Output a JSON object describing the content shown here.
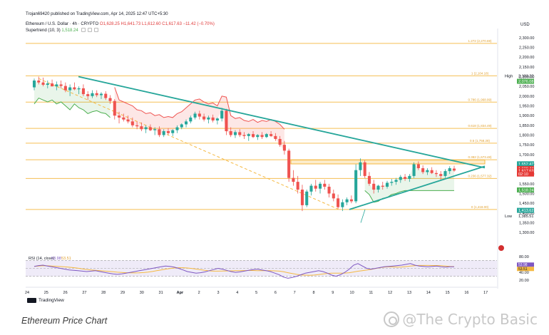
{
  "header": {
    "publisher": "Trojan69420 published on TradingView.com, Apr 14, 2025 12:47 UTC+5:30",
    "symbol": "Ethereum / U.S. Dollar · 4h · CRYPTO",
    "ohlc": "O1,628.25 H1,641.73 L1,612.60 C1,617.63 −11.42 (−0.70%)",
    "indicator_label": "Supertrend (10, 3)",
    "indicator_value": "1,518.24",
    "currency": "USD"
  },
  "footer": {
    "caption": "Ethereum Price Chart",
    "watermark": "@The Crypto Basic",
    "tv_logo": "TradingView"
  },
  "colors": {
    "up": "#26a69a",
    "down": "#ef5350",
    "trendline": "#26a69a",
    "fib": "#f5b942",
    "supertrend_up": "#4caf50",
    "supertrend_down": "#ef5350",
    "rsi": "#7e57c2",
    "rsi_ma": "#f5b942",
    "last_price": "#e53935"
  },
  "chart_data": {
    "type": "candlestick",
    "title": "Ethereum / U.S. Dollar · 4h · CRYPTO",
    "ylim": [
      1275,
      2325
    ],
    "y_ticks": [
      1300,
      1350,
      1400,
      1450,
      1500,
      1550,
      1600,
      1650,
      1700,
      1750,
      1800,
      1850,
      1900,
      1950,
      2000,
      2050,
      2100,
      2150,
      2200,
      2250,
      2300
    ],
    "x_ticks": [
      "24",
      "25",
      "26",
      "27",
      "28",
      "29",
      "30",
      "31",
      "Apr",
      "2",
      "3",
      "4",
      "5",
      "6",
      "7",
      "8",
      "9",
      "10",
      "11",
      "12",
      "13",
      "14",
      "15",
      "16",
      "17"
    ],
    "fib_levels": [
      {
        "ratio": "1.272",
        "price": 2270.69,
        "label": "1.272 (2,270.69)"
      },
      {
        "ratio": "1",
        "price": 2104.18,
        "label": "1 (2,104.18)"
      },
      {
        "ratio": "0.786",
        "price": 1968.99,
        "label": "0.786 (1,968.99)"
      },
      {
        "ratio": "0.618",
        "price": 1834.49,
        "label": "0.618 (1,834.49)"
      },
      {
        "ratio": "0.5",
        "price": 1758.28,
        "label": "0.5 (1,758.28)"
      },
      {
        "ratio": "0.382",
        "price": 1673.48,
        "label": "0.382 (1,673.48)"
      },
      {
        "ratio": "0.236",
        "price": 1577.32,
        "label": "0.236 (1,577.32)"
      },
      {
        "ratio": "0",
        "price": 1418.0,
        "label": "0 (1,418.00)"
      }
    ],
    "price_labels": [
      {
        "text": "High",
        "value": "2,103.22",
        "price": 2103.22,
        "style": "plain"
      },
      {
        "text": "",
        "value": "2,076.08",
        "price": 2076.08,
        "style": "green"
      },
      {
        "text": "",
        "value": "1,652.47",
        "price": 1652.47,
        "style": "teal"
      },
      {
        "text": "",
        "value": "1,634.09",
        "price": 1634.09,
        "style": "teal"
      },
      {
        "text": "",
        "value": "1,628.44",
        "price": 1628.44,
        "style": "red"
      },
      {
        "text": "",
        "value": "1,617.63",
        "price": 1617.63,
        "style": "red"
      },
      {
        "text": "",
        "value": "02:10",
        "price": 1600,
        "style": "red"
      },
      {
        "text": "",
        "value": "1,518.24",
        "price": 1518.24,
        "style": "green"
      },
      {
        "text": "",
        "value": "1,413.62",
        "price": 1413.62,
        "style": "teal"
      },
      {
        "text": "Low",
        "value": "1,385.51",
        "price": 1385.51,
        "style": "plain"
      }
    ],
    "trendline_down": {
      "from": {
        "x": "Mar 25",
        "y": 2100
      },
      "to": {
        "x": "Apr 16",
        "y": 1632
      }
    },
    "trendline_up": {
      "from": {
        "x": "Apr 9",
        "y": 1418
      },
      "to": {
        "x": "Apr 16",
        "y": 1640
      }
    },
    "resistance_zone": {
      "from": "Apr 5",
      "to": "Apr 16",
      "price_low": 1652,
      "price_high": 1672
    },
    "candles_ohlc": [
      [
        2045,
        2090,
        2030,
        2080
      ],
      [
        2080,
        2100,
        2060,
        2070
      ],
      [
        2070,
        2095,
        2050,
        2058
      ],
      [
        2058,
        2080,
        2040,
        2065
      ],
      [
        2065,
        2085,
        2050,
        2050
      ],
      [
        2050,
        2075,
        2030,
        2060
      ],
      [
        2060,
        2080,
        2040,
        2052
      ],
      [
        2052,
        2070,
        2020,
        2030
      ],
      [
        2030,
        2060,
        2000,
        2045
      ],
      [
        2045,
        2070,
        2030,
        2035
      ],
      [
        2035,
        2050,
        2010,
        2040
      ],
      [
        2040,
        2060,
        2000,
        2010
      ],
      [
        2010,
        2025,
        1980,
        2000
      ],
      [
        2000,
        2030,
        1990,
        2015
      ],
      [
        2015,
        2030,
        1995,
        2005
      ],
      [
        2005,
        2020,
        1985,
        2012
      ],
      [
        2012,
        2025,
        1980,
        1990
      ],
      [
        1990,
        2005,
        1960,
        1975
      ],
      [
        1975,
        1985,
        1880,
        1900
      ],
      [
        1900,
        1920,
        1860,
        1890
      ],
      [
        1890,
        1910,
        1870,
        1880
      ],
      [
        1880,
        1900,
        1860,
        1870
      ],
      [
        1870,
        1890,
        1840,
        1850
      ],
      [
        1850,
        1870,
        1830,
        1845
      ],
      [
        1845,
        1865,
        1820,
        1830
      ],
      [
        1830,
        1850,
        1810,
        1840
      ],
      [
        1840,
        1855,
        1820,
        1825
      ],
      [
        1825,
        1840,
        1800,
        1830
      ],
      [
        1830,
        1845,
        1790,
        1800
      ],
      [
        1800,
        1830,
        1790,
        1820
      ],
      [
        1820,
        1835,
        1800,
        1810
      ],
      [
        1810,
        1830,
        1795,
        1825
      ],
      [
        1825,
        1850,
        1810,
        1840
      ],
      [
        1840,
        1860,
        1830,
        1855
      ],
      [
        1855,
        1880,
        1840,
        1870
      ],
      [
        1870,
        1900,
        1860,
        1890
      ],
      [
        1890,
        1920,
        1880,
        1910
      ],
      [
        1910,
        1925,
        1880,
        1895
      ],
      [
        1895,
        1910,
        1870,
        1880
      ],
      [
        1880,
        1900,
        1860,
        1890
      ],
      [
        1890,
        1905,
        1865,
        1875
      ],
      [
        1875,
        1890,
        1855,
        1885
      ],
      [
        1885,
        1940,
        1870,
        1925
      ],
      [
        1925,
        1935,
        1800,
        1820
      ],
      [
        1820,
        1840,
        1790,
        1800
      ],
      [
        1800,
        1825,
        1785,
        1815
      ],
      [
        1815,
        1830,
        1790,
        1800
      ],
      [
        1800,
        1815,
        1780,
        1795
      ],
      [
        1795,
        1810,
        1770,
        1805
      ],
      [
        1805,
        1820,
        1785,
        1790
      ],
      [
        1790,
        1805,
        1775,
        1800
      ],
      [
        1800,
        1815,
        1780,
        1790
      ],
      [
        1790,
        1810,
        1785,
        1805
      ],
      [
        1805,
        1820,
        1790,
        1795
      ],
      [
        1795,
        1810,
        1770,
        1780
      ],
      [
        1780,
        1795,
        1740,
        1750
      ],
      [
        1750,
        1770,
        1700,
        1720
      ],
      [
        1720,
        1730,
        1560,
        1580
      ],
      [
        1580,
        1620,
        1540,
        1560
      ],
      [
        1560,
        1590,
        1500,
        1520
      ],
      [
        1520,
        1545,
        1410,
        1440
      ],
      [
        1440,
        1520,
        1430,
        1510
      ],
      [
        1510,
        1550,
        1490,
        1540
      ],
      [
        1540,
        1570,
        1510,
        1525
      ],
      [
        1525,
        1560,
        1500,
        1550
      ],
      [
        1550,
        1570,
        1520,
        1535
      ],
      [
        1535,
        1550,
        1480,
        1500
      ],
      [
        1500,
        1520,
        1460,
        1475
      ],
      [
        1475,
        1495,
        1420,
        1430
      ],
      [
        1430,
        1470,
        1410,
        1455
      ],
      [
        1455,
        1480,
        1440,
        1470
      ],
      [
        1470,
        1490,
        1450,
        1460
      ],
      [
        1460,
        1650,
        1450,
        1620
      ],
      [
        1620,
        1680,
        1590,
        1660
      ],
      [
        1660,
        1670,
        1580,
        1590
      ],
      [
        1590,
        1610,
        1540,
        1550
      ],
      [
        1550,
        1570,
        1500,
        1520
      ],
      [
        1520,
        1545,
        1505,
        1540
      ],
      [
        1540,
        1560,
        1520,
        1535
      ],
      [
        1535,
        1565,
        1525,
        1555
      ],
      [
        1555,
        1575,
        1540,
        1560
      ],
      [
        1560,
        1580,
        1545,
        1570
      ],
      [
        1570,
        1595,
        1555,
        1585
      ],
      [
        1585,
        1600,
        1565,
        1575
      ],
      [
        1575,
        1600,
        1560,
        1590
      ],
      [
        1590,
        1660,
        1580,
        1650
      ],
      [
        1650,
        1665,
        1620,
        1630
      ],
      [
        1630,
        1645,
        1600,
        1610
      ],
      [
        1610,
        1630,
        1595,
        1620
      ],
      [
        1620,
        1635,
        1600,
        1605
      ],
      [
        1605,
        1620,
        1585,
        1600
      ],
      [
        1600,
        1615,
        1570,
        1590
      ],
      [
        1590,
        1625,
        1580,
        1615
      ],
      [
        1615,
        1640,
        1600,
        1630
      ],
      [
        1628,
        1642,
        1612,
        1618
      ]
    ],
    "supertrend": {
      "label": "Supertrend (10, 3)",
      "last_value": 1518.24
    },
    "rsi": {
      "title": "RSI (14, close)",
      "value": 53.98,
      "ma_value": 53.51,
      "levels": [
        70,
        50,
        30
      ],
      "y_ticks": [
        20,
        40,
        60,
        80
      ],
      "y_tick_labels": [
        "20.00",
        "40.00",
        "60.00",
        "80.00"
      ],
      "value_label": "53.98",
      "ma_label": "53.51",
      "series": [
        55,
        57,
        58,
        56,
        54,
        52,
        50,
        48,
        46,
        45,
        44,
        43,
        42,
        43,
        44,
        42,
        40,
        38,
        36,
        35,
        36,
        38,
        40,
        42,
        44,
        46,
        48,
        50,
        52,
        54,
        56,
        55,
        53,
        50,
        46,
        42,
        40,
        38,
        39,
        41,
        44,
        47,
        50,
        48,
        45,
        42,
        40,
        41,
        43,
        45,
        47,
        48,
        46,
        44,
        42,
        38,
        34,
        28,
        25,
        27,
        30,
        34,
        38,
        40,
        42,
        44,
        42,
        38,
        33,
        30,
        34,
        40,
        48,
        58,
        62,
        56,
        50,
        48,
        50,
        52,
        54,
        55,
        56,
        57,
        58,
        60,
        62,
        58,
        56,
        55,
        54,
        55,
        56,
        54,
        53,
        54,
        54
      ]
    }
  }
}
